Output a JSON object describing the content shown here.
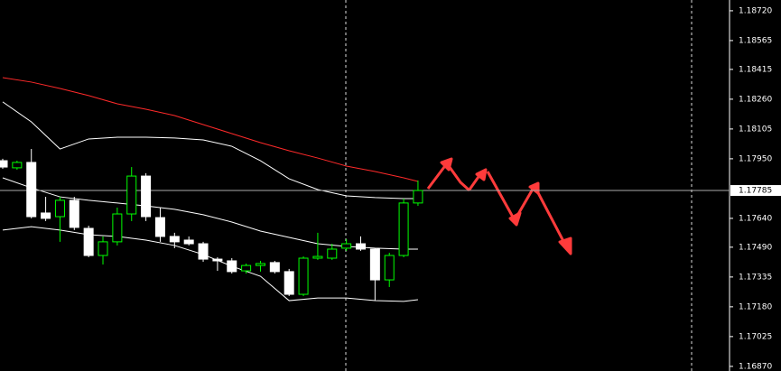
{
  "chart_data": {
    "type": "candlestick",
    "ylim": [
      1.16846,
      1.18776
    ],
    "yticks": [
      {
        "value": 1.1872,
        "label": "1.18720"
      },
      1.18565,
      1.18415,
      {
        "value": 1.1826,
        "label": "1.18260"
      },
      1.18105,
      {
        "value": 1.1795,
        "label": "1.17950"
      },
      {
        "value": 1.1764,
        "label": "1.17640"
      },
      {
        "value": 1.1749,
        "label": "1.17490"
      },
      1.17335,
      {
        "value": 1.1718,
        "label": "1.17180"
      },
      1.17025,
      {
        "value": 1.1687,
        "label": "1.16870"
      }
    ],
    "current_price": 1.17785,
    "up_color": "#00ff00",
    "down_color": "#ffffff",
    "candles": [
      {
        "open": 1.1794,
        "high": 1.1795,
        "low": 1.17898,
        "close": 1.17907
      },
      {
        "open": 1.17903,
        "high": 1.1794,
        "low": 1.17893,
        "close": 1.17931
      },
      {
        "open": 1.17931,
        "high": 1.18001,
        "low": 1.1764,
        "close": 1.17649
      },
      {
        "open": 1.17668,
        "high": 1.17752,
        "low": 1.17626,
        "close": 1.1764
      },
      {
        "open": 1.17649,
        "high": 1.17752,
        "low": 1.17518,
        "close": 1.17734
      },
      {
        "open": 1.17734,
        "high": 1.17752,
        "low": 1.17579,
        "close": 1.17593
      },
      {
        "open": 1.17588,
        "high": 1.17602,
        "low": 1.17438,
        "close": 1.17447
      },
      {
        "open": 1.17447,
        "high": 1.17546,
        "low": 1.174,
        "close": 1.17518
      },
      {
        "open": 1.17518,
        "high": 1.17696,
        "low": 1.17499,
        "close": 1.17663
      },
      {
        "open": 1.17663,
        "high": 1.17907,
        "low": 1.17626,
        "close": 1.1786
      },
      {
        "open": 1.1786,
        "high": 1.17875,
        "low": 1.17626,
        "close": 1.17649
      },
      {
        "open": 1.17644,
        "high": 1.17696,
        "low": 1.17518,
        "close": 1.17546
      },
      {
        "open": 1.17546,
        "high": 1.17565,
        "low": 1.17485,
        "close": 1.17518
      },
      {
        "open": 1.17527,
        "high": 1.17546,
        "low": 1.17499,
        "close": 1.17508
      },
      {
        "open": 1.17508,
        "high": 1.17518,
        "low": 1.17414,
        "close": 1.17428
      },
      {
        "open": 1.17428,
        "high": 1.17438,
        "low": 1.17367,
        "close": 1.17419
      },
      {
        "open": 1.17419,
        "high": 1.17433,
        "low": 1.17353,
        "close": 1.17363
      },
      {
        "open": 1.17367,
        "high": 1.17405,
        "low": 1.17353,
        "close": 1.17395
      },
      {
        "open": 1.17395,
        "high": 1.17419,
        "low": 1.17363,
        "close": 1.17405
      },
      {
        "open": 1.1741,
        "high": 1.17419,
        "low": 1.17353,
        "close": 1.17363
      },
      {
        "open": 1.17363,
        "high": 1.17377,
        "low": 1.17236,
        "close": 1.17245
      },
      {
        "open": 1.17245,
        "high": 1.17442,
        "low": 1.17236,
        "close": 1.17433
      },
      {
        "open": 1.17433,
        "high": 1.17565,
        "low": 1.17424,
        "close": 1.17442
      },
      {
        "open": 1.17433,
        "high": 1.17508,
        "low": 1.17424,
        "close": 1.1748
      },
      {
        "open": 1.17485,
        "high": 1.17532,
        "low": 1.17471,
        "close": 1.17508
      },
      {
        "open": 1.17508,
        "high": 1.17546,
        "low": 1.17471,
        "close": 1.1748
      },
      {
        "open": 1.1748,
        "high": 1.17485,
        "low": 1.17212,
        "close": 1.1732
      },
      {
        "open": 1.1732,
        "high": 1.17461,
        "low": 1.17283,
        "close": 1.17447
      },
      {
        "open": 1.17447,
        "high": 1.17743,
        "low": 1.17438,
        "close": 1.1772
      },
      {
        "open": 1.1772,
        "high": 1.17837,
        "low": 1.17705,
        "close": 1.17785
      }
    ],
    "indicators": [
      {
        "color": "#ffffff",
        "x": [
          0,
          2,
          4,
          6,
          8,
          10,
          12,
          14,
          16,
          18,
          20,
          22,
          24,
          26,
          28,
          29
        ],
        "values": [
          1.18246,
          1.18142,
          1.18001,
          1.18053,
          1.18062,
          1.18062,
          1.18058,
          1.18048,
          1.18015,
          1.1794,
          1.17846,
          1.1779,
          1.17757,
          1.17748,
          1.17743,
          1.17743
        ]
      },
      {
        "color": "#ffffff",
        "x": [
          0,
          2,
          4,
          6,
          8,
          10,
          12,
          14,
          16,
          18,
          20,
          22,
          24,
          26,
          28,
          29
        ],
        "values": [
          1.17851,
          1.17799,
          1.17752,
          1.17734,
          1.1772,
          1.17705,
          1.17687,
          1.17659,
          1.17621,
          1.17574,
          1.17541,
          1.17508,
          1.17494,
          1.17485,
          1.1748,
          1.1748
        ]
      },
      {
        "color": "#ffffff",
        "x": [
          0,
          2,
          4,
          6,
          8,
          10,
          12,
          14,
          16,
          18,
          20,
          22,
          24,
          26,
          28,
          29
        ],
        "values": [
          1.17579,
          1.17597,
          1.17579,
          1.17555,
          1.17546,
          1.17527,
          1.17499,
          1.17452,
          1.17391,
          1.17339,
          1.17212,
          1.17226,
          1.17226,
          1.17212,
          1.17208,
          1.17217
        ]
      },
      {
        "color": "#ff2a2a",
        "x": [
          0,
          2,
          4,
          6,
          8,
          10,
          12,
          14,
          16,
          18,
          20,
          22,
          24,
          26,
          28,
          29
        ],
        "values": [
          1.18372,
          1.18349,
          1.18316,
          1.18279,
          1.18236,
          1.18208,
          1.18175,
          1.18128,
          1.18081,
          1.18034,
          1.17992,
          1.17954,
          1.17912,
          1.17884,
          1.17851,
          1.17832
        ]
      }
    ]
  }
}
